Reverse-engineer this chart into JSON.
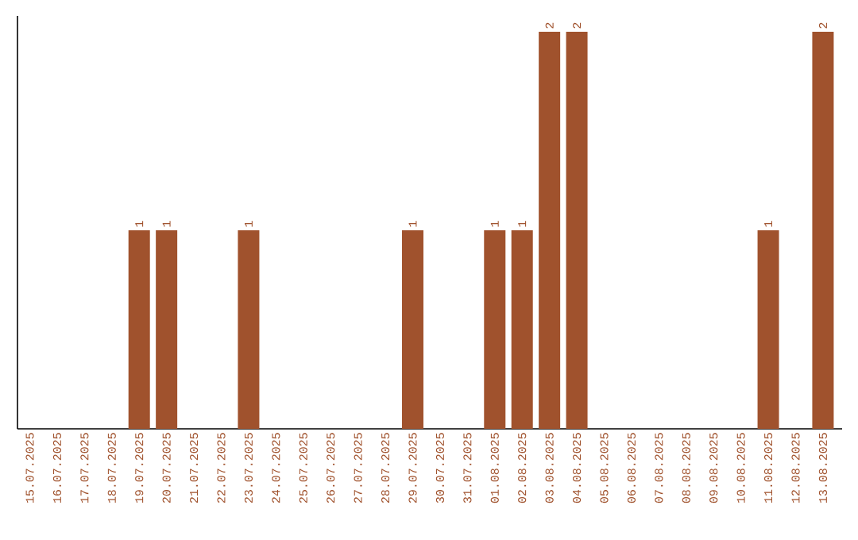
{
  "chart_data": {
    "type": "bar",
    "color": "#a0522d",
    "categories": [
      "15.07.2025",
      "16.07.2025",
      "17.07.2025",
      "18.07.2025",
      "19.07.2025",
      "20.07.2025",
      "21.07.2025",
      "22.07.2025",
      "23.07.2025",
      "24.07.2025",
      "25.07.2025",
      "26.07.2025",
      "27.07.2025",
      "28.07.2025",
      "29.07.2025",
      "30.07.2025",
      "31.07.2025",
      "01.08.2025",
      "02.08.2025",
      "03.08.2025",
      "04.08.2025",
      "05.08.2025",
      "06.08.2025",
      "07.08.2025",
      "08.08.2025",
      "09.08.2025",
      "10.08.2025",
      "11.08.2025",
      "12.08.2025",
      "13.08.2025"
    ],
    "values": [
      0,
      0,
      0,
      0,
      1,
      1,
      0,
      0,
      1,
      0,
      0,
      0,
      0,
      0,
      1,
      0,
      0,
      1,
      1,
      2,
      2,
      0,
      0,
      0,
      0,
      0,
      0,
      1,
      0,
      2
    ],
    "value_labels": [
      null,
      null,
      null,
      null,
      "1",
      "1",
      null,
      null,
      "1",
      null,
      null,
      null,
      null,
      null,
      "1",
      null,
      null,
      "1",
      "1",
      "2",
      "2",
      null,
      null,
      null,
      null,
      null,
      null,
      "1",
      null,
      "2"
    ],
    "tick_labels": "x"
  }
}
